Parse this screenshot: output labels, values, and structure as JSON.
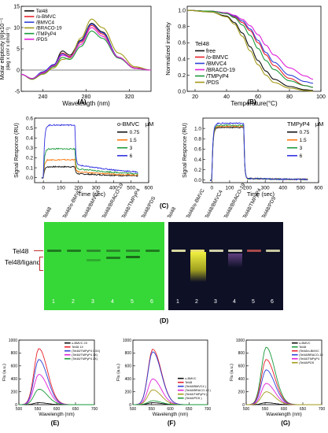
{
  "chart_data": [
    {
      "id": "A",
      "type": "line",
      "ylabel": "Molar ellipticity [θ]x10⁻⁵",
      "ylabel_unit": "(deg x cm² x dmol⁻¹)",
      "xlabel": "Wavelength (nm)",
      "xlim": [
        220,
        340
      ],
      "ylim": [
        -5,
        15
      ],
      "xticks": [
        "240",
        "280",
        "320"
      ],
      "yticks": [
        "-5",
        "0",
        "5",
        "10",
        "15"
      ],
      "legend": {
        "placement": "top-left"
      },
      "series": [
        {
          "name": "Tel48",
          "color": "#111111",
          "x": [
            220,
            230,
            240,
            250,
            258,
            265,
            275,
            285,
            295,
            310,
            325,
            340
          ],
          "y": [
            -1,
            -2,
            -0.5,
            1.2,
            4.5,
            3.5,
            7,
            11,
            9,
            3,
            0.5,
            0
          ]
        },
        {
          "name": "/o-BMVC",
          "color": "#e8202a",
          "x": [
            220,
            230,
            240,
            250,
            258,
            265,
            275,
            285,
            295,
            310,
            325,
            340
          ],
          "y": [
            -1,
            -2,
            -0.6,
            1,
            4,
            3.2,
            6.5,
            10.5,
            8.5,
            3,
            0.5,
            0
          ]
        },
        {
          "name": "/BMVC4",
          "color": "#3040d8",
          "x": [
            220,
            230,
            240,
            250,
            258,
            265,
            275,
            285,
            295,
            310,
            325,
            340
          ],
          "y": [
            -1,
            -2,
            -0.4,
            1.3,
            3.8,
            3,
            6.8,
            10.8,
            8.8,
            3,
            0.4,
            0
          ]
        },
        {
          "name": "/BRACO-19",
          "color": "#a39a18",
          "x": [
            220,
            230,
            240,
            250,
            258,
            265,
            275,
            285,
            295,
            310,
            325,
            340
          ],
          "y": [
            -1,
            -2.2,
            -1,
            0.5,
            2.5,
            2.8,
            7.5,
            12,
            10,
            4,
            0.8,
            0
          ]
        },
        {
          "name": "/TMPyP4",
          "color": "#1a9a3a",
          "x": [
            220,
            230,
            240,
            250,
            258,
            265,
            275,
            285,
            295,
            310,
            325,
            340
          ],
          "y": [
            -1,
            -2.1,
            -0.8,
            0.8,
            3,
            2.5,
            5.5,
            9.2,
            7.5,
            2.8,
            0.4,
            0
          ]
        },
        {
          "name": "/PDS",
          "color": "#e020d8",
          "x": [
            220,
            230,
            240,
            250,
            258,
            265,
            275,
            285,
            295,
            310,
            325,
            340
          ],
          "y": [
            -1,
            -2,
            -0.7,
            1,
            3.5,
            3,
            6,
            10,
            8,
            3,
            0.4,
            0
          ]
        }
      ]
    },
    {
      "id": "B",
      "type": "line",
      "ylabel": "Normalized intensity",
      "xlabel": "Temperature(°C)",
      "xlim": [
        15,
        100
      ],
      "ylim": [
        0,
        1.05
      ],
      "xticks": [
        "20",
        "40",
        "60",
        "80",
        "100"
      ],
      "yticks": [
        "0.0",
        "0.2",
        "0.4",
        "0.6",
        "0.8",
        "1.0"
      ],
      "legend": {
        "placement": "bottom-left",
        "title": "Tel48"
      },
      "series": [
        {
          "name": "free",
          "color": "#111111",
          "x": [
            15,
            30,
            40,
            45,
            50,
            55,
            60,
            65,
            70,
            80,
            90,
            95
          ],
          "y": [
            1,
            0.98,
            0.93,
            0.85,
            0.72,
            0.55,
            0.38,
            0.25,
            0.15,
            0.06,
            0.02,
            0.01
          ]
        },
        {
          "name": "/o-BMVC",
          "color": "#e8202a",
          "x": [
            15,
            30,
            40,
            45,
            50,
            55,
            60,
            65,
            70,
            80,
            90,
            95
          ],
          "y": [
            1,
            0.99,
            0.96,
            0.92,
            0.85,
            0.75,
            0.6,
            0.45,
            0.32,
            0.16,
            0.07,
            0.05
          ]
        },
        {
          "name": "/BMVC4",
          "color": "#3040d8",
          "x": [
            15,
            30,
            40,
            45,
            50,
            55,
            60,
            65,
            70,
            80,
            90,
            95
          ],
          "y": [
            1,
            0.99,
            0.97,
            0.93,
            0.87,
            0.77,
            0.63,
            0.48,
            0.36,
            0.2,
            0.12,
            0.1
          ]
        },
        {
          "name": "/BRACO-19",
          "color": "#e020d8",
          "x": [
            15,
            30,
            40,
            45,
            50,
            55,
            60,
            65,
            70,
            80,
            90,
            95
          ],
          "y": [
            1,
            0.99,
            0.97,
            0.94,
            0.89,
            0.81,
            0.7,
            0.57,
            0.45,
            0.29,
            0.19,
            0.15
          ]
        },
        {
          "name": "/TMPyP4",
          "color": "#1a9a3a",
          "x": [
            15,
            30,
            40,
            45,
            50,
            55,
            60,
            65,
            70,
            80,
            90,
            95
          ],
          "y": [
            1,
            0.99,
            0.96,
            0.91,
            0.82,
            0.69,
            0.53,
            0.38,
            0.27,
            0.13,
            0.07,
            0.05
          ]
        },
        {
          "name": "/PDS",
          "color": "#a39a18",
          "x": [
            15,
            30,
            40,
            45,
            50,
            55,
            60,
            65,
            70,
            80,
            90,
            95
          ],
          "y": [
            1,
            0.98,
            0.92,
            0.83,
            0.68,
            0.5,
            0.33,
            0.2,
            0.11,
            0.04,
            0.01,
            0.0
          ]
        }
      ]
    },
    {
      "id": "C1",
      "type": "line",
      "ylabel": "Signal Responce (RU)",
      "xlabel": "Time (sec)",
      "xlim": [
        -50,
        600
      ],
      "ylim": [
        -0.05,
        0.6
      ],
      "xticks": [
        "0",
        "100",
        "200",
        "300",
        "400",
        "500",
        "600"
      ],
      "yticks": [
        "0.0",
        "0.1",
        "0.2",
        "0.3",
        "0.4",
        "0.5",
        "0.6"
      ],
      "legend": {
        "placement": "top-right",
        "title": "o-BMVC",
        "unit": "μM"
      },
      "series": [
        {
          "name": "0.75",
          "color": "#111111",
          "plateau": 0.11,
          "tail": 0.04
        },
        {
          "name": "1.5",
          "color": "#ff7a10",
          "plateau": 0.18,
          "tail": 0.06
        },
        {
          "name": "3",
          "color": "#1a9a3a",
          "plateau": 0.29,
          "tail": 0.09
        },
        {
          "name": "6",
          "color": "#3030e0",
          "plateau": 0.53,
          "tail": 0.13
        }
      ]
    },
    {
      "id": "C2",
      "type": "line",
      "ylabel": "Signal Responce (RU)",
      "xlabel": "Time (sec)",
      "xlim": [
        -50,
        600
      ],
      "ylim": [
        -0.05,
        1.2
      ],
      "xticks": [
        "0",
        "100",
        "200",
        "300",
        "400",
        "500",
        "600"
      ],
      "yticks": [
        "0.0",
        "0.2",
        "0.4",
        "0.6",
        "0.8",
        "1.0"
      ],
      "legend": {
        "placement": "top-right",
        "title": "TMPyP4",
        "unit": "μM"
      },
      "series": [
        {
          "name": "0.75",
          "color": "#111111",
          "plateau": 1.02,
          "tail": 0.03
        },
        {
          "name": "1.5",
          "color": "#ff7a10",
          "plateau": 1.04,
          "tail": 0.03
        },
        {
          "name": "3",
          "color": "#1a9a3a",
          "plateau": 1.06,
          "tail": 0.03
        },
        {
          "name": "6",
          "color": "#3030e0",
          "plateau": 1.1,
          "tail": 0.03
        }
      ]
    },
    {
      "id": "E",
      "type": "line",
      "ylabel": "Flu (a.u.)",
      "xlabel": "Wavelength (nm)",
      "xlim": [
        500,
        700
      ],
      "ylim": [
        0,
        1000
      ],
      "xticks": [
        "500",
        "550",
        "600",
        "650",
        "700"
      ],
      "yticks": [
        "0",
        "200",
        "400",
        "600",
        "800",
        "1000"
      ],
      "legend": {
        "placement": "top-right"
      },
      "series": [
        {
          "name": "o-BMVC 2X",
          "color": "#111111",
          "peak": 30
        },
        {
          "name": "Tel48 1X",
          "color": "#e8202a",
          "peak": 870
        },
        {
          "name": "(Tel48/TMPyP4 0.5X)",
          "color": "#3040d8",
          "peak": 700
        },
        {
          "name": "(Tel48/TMPyP4 1X)",
          "color": "#e020d8",
          "peak": 470
        },
        {
          "name": "(Tel48/TMPyP4 2X)",
          "color": "#1a9a3a",
          "peak": 240
        }
      ]
    },
    {
      "id": "F",
      "type": "line",
      "ylabel": "Flu (a.u.)",
      "xlabel": "Wavelength (nm)",
      "xlim": [
        500,
        700
      ],
      "ylim": [
        0,
        1000
      ],
      "xticks": [
        "500",
        "550",
        "600",
        "650",
        "700"
      ],
      "yticks": [
        "0",
        "200",
        "400",
        "600",
        "800",
        "1000"
      ],
      "legend": {
        "placement": "bottom-right"
      },
      "series": [
        {
          "name": "o-BMVC",
          "color": "#111111",
          "peak": 30
        },
        {
          "name": "Tel48",
          "color": "#e8202a",
          "peak": 860
        },
        {
          "name": "(Tel48/BMVC4 )",
          "color": "#3040d8",
          "peak": 820
        },
        {
          "name": "(Tel48/BRACO-19 )",
          "color": "#e020d8",
          "peak": 400
        },
        {
          "name": "(Tel48/TMPyP4 )",
          "color": "#a39a18",
          "peak": 230
        },
        {
          "name": "(Tel48/PDS )",
          "color": "#1a9a3a",
          "peak": 60
        }
      ]
    },
    {
      "id": "G",
      "type": "line",
      "ylabel": "Flu (a.u.)",
      "xlabel": "Wavelength (nm)",
      "xlim": [
        500,
        700
      ],
      "ylim": [
        0,
        1000
      ],
      "xticks": [
        "500",
        "550",
        "600",
        "650",
        "700"
      ],
      "yticks": [
        "0",
        "200",
        "400",
        "600",
        "800",
        "1000"
      ],
      "legend": {
        "placement": "top-right"
      },
      "series": [
        {
          "name": "o-BMVC",
          "color": "#111111",
          "peak": 30
        },
        {
          "name": "Tel48",
          "color": "#1a9a3a",
          "peak": 890
        },
        {
          "name": "(Tel48/o-BMVC",
          "color": "#e8202a",
          "peak": 700
        },
        {
          "name": "(Tel48/BRACO-19",
          "color": "#3040d8",
          "peak": 540
        },
        {
          "name": "(Tel48/TMPyP4",
          "color": "#e020d8",
          "peak": 330
        },
        {
          "name": "(Tel48/PDS",
          "color": "#a39a18",
          "peak": 200
        }
      ]
    }
  ],
  "gel": {
    "lane_labels": [
      "Tel48",
      "Tel48/o-BMVC",
      "Tel48/BMVC4",
      "Tel48/BRACO-19",
      "Tel48/TMPyP4",
      "Tel48/PDS"
    ],
    "lane_numbers": [
      "1",
      "2",
      "3",
      "4",
      "5",
      "6"
    ],
    "band_label": "Tel48",
    "complex_label": "Tel48/ligand",
    "left_color": "#3fe03a",
    "right_color": "#0d0d2a"
  },
  "panels": {
    "A": "(A)",
    "B": "(B)",
    "C": "(C)",
    "D": "(D)",
    "E": "(E)",
    "F": "(F)",
    "G": "(G)"
  }
}
